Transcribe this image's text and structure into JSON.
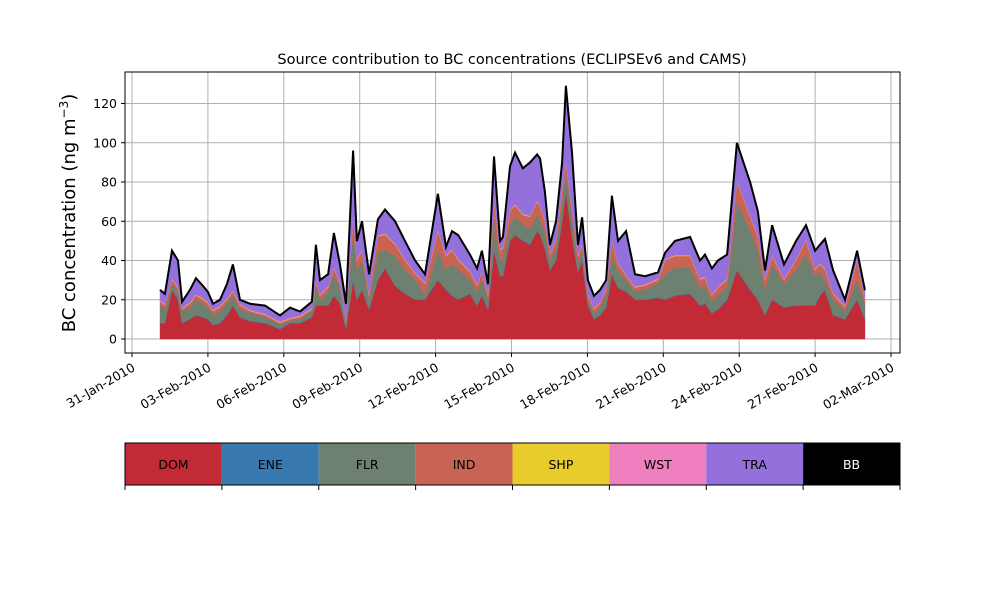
{
  "chart_data": {
    "type": "area",
    "stacked": true,
    "title": "Source contribution to BC concentrations (ECLIPSEv6 and CAMS)",
    "ylabel": "BC concentration (ng m",
    "ylabel_sup": "−3",
    "ylabel_close": ")",
    "xlabel": "",
    "x_units": "days since 31-Jan-2010 00:00",
    "xlim": [
      -0.1,
      30.3
    ],
    "ylim": [
      -7,
      136
    ],
    "grid": true,
    "x_ticks": [
      0,
      3,
      6,
      9,
      12,
      15,
      18,
      21,
      24,
      27,
      30
    ],
    "x_tick_labels": [
      "31-Jan-2010",
      "03-Feb-2010",
      "06-Feb-2010",
      "09-Feb-2010",
      "12-Feb-2010",
      "15-Feb-2010",
      "18-Feb-2010",
      "21-Feb-2010",
      "24-Feb-2010",
      "27-Feb-2010",
      "02-Mar-2010"
    ],
    "y_ticks": [
      0,
      20,
      40,
      60,
      80,
      100,
      120
    ],
    "y_tick_labels": [
      "0",
      "20",
      "40",
      "60",
      "80",
      "100",
      "120"
    ],
    "x": [
      1.11,
      1.3,
      1.58,
      1.82,
      1.98,
      2.29,
      2.53,
      2.81,
      3.0,
      3.2,
      3.48,
      3.75,
      3.99,
      4.27,
      4.66,
      5.26,
      5.85,
      6.25,
      6.64,
      7.11,
      7.27,
      7.43,
      7.75,
      7.98,
      8.22,
      8.46,
      8.74,
      8.89,
      9.09,
      9.37,
      9.72,
      10.0,
      10.4,
      10.79,
      11.19,
      11.58,
      12.09,
      12.41,
      12.65,
      12.89,
      13.36,
      13.64,
      13.83,
      14.07,
      14.31,
      14.55,
      14.66,
      14.94,
      15.14,
      15.45,
      15.73,
      16.01,
      16.13,
      16.32,
      16.52,
      16.76,
      17.0,
      17.15,
      17.39,
      17.63,
      17.79,
      18.02,
      18.26,
      18.5,
      18.74,
      18.97,
      19.21,
      19.53,
      19.88,
      20.28,
      20.79,
      21.07,
      21.46,
      22.06,
      22.45,
      22.65,
      22.92,
      23.16,
      23.52,
      23.91,
      24.43,
      24.74,
      25.02,
      25.3,
      25.77,
      26.25,
      26.64,
      27.0,
      27.19,
      27.39,
      27.71,
      28.18,
      28.66,
      28.97
    ],
    "series": [
      {
        "name": "DOM",
        "color": "#c22a36",
        "values": [
          8,
          8,
          25,
          20,
          8,
          10,
          12,
          11,
          10,
          7,
          8,
          12,
          17,
          11,
          9,
          8,
          5,
          8,
          8,
          11,
          17,
          17,
          17,
          22,
          18,
          5,
          30,
          20,
          25,
          15,
          30,
          36,
          27,
          23,
          20,
          20,
          30,
          25,
          22,
          20,
          23,
          17,
          22,
          15,
          45,
          32,
          32,
          50,
          53,
          50,
          48,
          55,
          53,
          46,
          35,
          40,
          60,
          75,
          52,
          34,
          40,
          17,
          10,
          12,
          16,
          33,
          26,
          24,
          20,
          20,
          21,
          20,
          22,
          23,
          17,
          18,
          13,
          15,
          20,
          35,
          25,
          20,
          12,
          20,
          16,
          17,
          17,
          17,
          22,
          25,
          12,
          10,
          20,
          10
        ]
      },
      {
        "name": "ENE",
        "color": "#3878b0",
        "constant": 0.3
      },
      {
        "name": "FLR",
        "color": "#6e8070",
        "values": [
          9,
          7,
          3,
          4,
          6,
          6,
          8,
          7,
          6,
          5,
          6,
          6,
          5,
          4,
          4,
          3,
          2,
          1,
          2,
          3,
          10,
          3,
          7,
          11,
          8,
          3,
          25,
          15,
          15,
          5,
          14,
          9,
          15,
          12,
          10,
          2,
          15,
          10,
          16,
          15,
          7,
          7,
          8,
          5,
          15,
          8,
          8,
          8,
          9,
          8,
          8,
          8,
          7,
          9,
          5,
          6,
          10,
          10,
          10,
          4,
          5,
          3,
          3,
          4,
          6,
          10,
          8,
          6,
          4,
          5,
          7,
          13,
          14,
          13,
          9,
          9,
          6,
          7,
          6,
          35,
          30,
          25,
          13,
          18,
          12,
          18,
          26,
          15,
          12,
          5,
          8,
          4,
          10,
          8
        ]
      },
      {
        "name": "IND",
        "color": "#c86454",
        "values": [
          2,
          2,
          2,
          2,
          1,
          2,
          2,
          2,
          2,
          2,
          2,
          2,
          2,
          2,
          1,
          1,
          1,
          1,
          1,
          1,
          3,
          2,
          2,
          3,
          2,
          1,
          7,
          5,
          5,
          2,
          8,
          8,
          6,
          5,
          3,
          6,
          10,
          7,
          7,
          5,
          4,
          3,
          4,
          2,
          10,
          5,
          6,
          7,
          6,
          5,
          6,
          7,
          7,
          5,
          3,
          4,
          6,
          5,
          4,
          4,
          3,
          2,
          2,
          2,
          3,
          7,
          4,
          2,
          2,
          2,
          2,
          7,
          6,
          6,
          4,
          4,
          3,
          4,
          4,
          10,
          7,
          7,
          5,
          4,
          2,
          5,
          7,
          3,
          4,
          5,
          3,
          2,
          10,
          2
        ]
      },
      {
        "name": "SHP",
        "color": "#e8cc2c",
        "constant": 0.2
      },
      {
        "name": "WST",
        "color": "#f07fc0",
        "constant": 0.4
      },
      {
        "name": "TRA",
        "color": "#9370db",
        "values": [
          4.8,
          4.8,
          13.8,
          12.8,
          2.8,
          5.8,
          7.8,
          5.8,
          4.8,
          2.8,
          2.8,
          6.8,
          12.8,
          1.8,
          2.8,
          3.8,
          2.8,
          4.8,
          1.8,
          2.8,
          16.8,
          6.8,
          5.8,
          16.8,
          8.8,
          7.8,
          32.8,
          8.8,
          13.8,
          9.8,
          7.8,
          11.8,
          10.8,
          8.8,
          5.8,
          3.8,
          17.8,
          3.8,
          8.8,
          11.8,
          7.8,
          7.8,
          9.8,
          4.8,
          21.8,
          3.8,
          4.8,
          21.8,
          25.8,
          22.8,
          26.8,
          22.8,
          23.8,
          13.8,
          3.8,
          8.8,
          12.8,
          37.8,
          27.8,
          4.8,
          12.8,
          6.8,
          5.8,
          5.8,
          3.8,
          21.8,
          10.8,
          21.8,
          5.8,
          3.8,
          2.8,
          2.8,
          6.8,
          8.8,
          8.8,
          10.8,
          12.8,
          12.8,
          11.8,
          18.8,
          16.8,
          11.8,
          3.8,
          14.8,
          6.8,
          8.8,
          6.8,
          8.8,
          8.8,
          14.8,
          10.8,
          2.8,
          3.8,
          3.8
        ]
      },
      {
        "name": "BB",
        "color": "#000000",
        "constant": 0.3
      }
    ],
    "legend_placement": "colorbar-below"
  }
}
